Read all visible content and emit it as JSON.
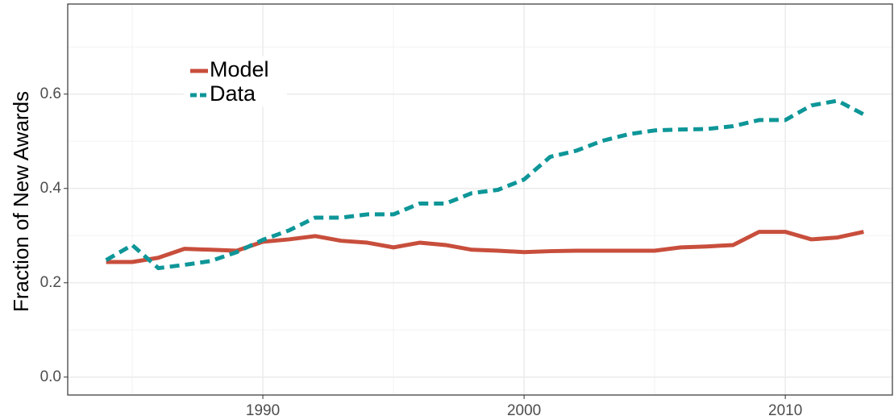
{
  "chart_data": {
    "type": "line",
    "y_label": "Fraction of New Awards",
    "x": [
      1984,
      1985,
      1986,
      1987,
      1988,
      1989,
      1990,
      1991,
      1992,
      1993,
      1994,
      1995,
      1996,
      1997,
      1998,
      1999,
      2000,
      2001,
      2002,
      2003,
      2004,
      2005,
      2006,
      2007,
      2008,
      2009,
      2010,
      2011,
      2012,
      2013
    ],
    "series": [
      {
        "name": "Model",
        "color": "#c84e3c",
        "style": "solid",
        "values": [
          0.244,
          0.244,
          0.253,
          0.272,
          0.27,
          0.268,
          0.287,
          0.292,
          0.299,
          0.289,
          0.285,
          0.275,
          0.285,
          0.28,
          0.27,
          0.268,
          0.265,
          0.267,
          0.268,
          0.268,
          0.268,
          0.268,
          0.275,
          0.277,
          0.28,
          0.308,
          0.308,
          0.292,
          0.296,
          0.308
        ]
      },
      {
        "name": "Data",
        "color": "#0e9698",
        "style": "dashed",
        "values": [
          0.248,
          0.28,
          0.231,
          0.238,
          0.246,
          0.265,
          0.291,
          0.311,
          0.338,
          0.338,
          0.345,
          0.345,
          0.368,
          0.368,
          0.39,
          0.397,
          0.419,
          0.467,
          0.48,
          0.501,
          0.515,
          0.523,
          0.525,
          0.526,
          0.532,
          0.545,
          0.545,
          0.576,
          0.586,
          0.557
        ]
      }
    ],
    "xlim": [
      1982.53,
      2014.1
    ],
    "ylim": [
      -0.038,
      0.791
    ],
    "xticks": [
      1990,
      2000,
      2010
    ],
    "yticks": [
      {
        "value": 0,
        "label": "0.0"
      },
      0.2,
      0.4,
      0.6
    ],
    "xminorticks": [
      1985,
      1995,
      2005
    ],
    "yminorticks": [
      0.1,
      0.3,
      0.5,
      0.7
    ],
    "grid": true,
    "legend": "top-left"
  }
}
